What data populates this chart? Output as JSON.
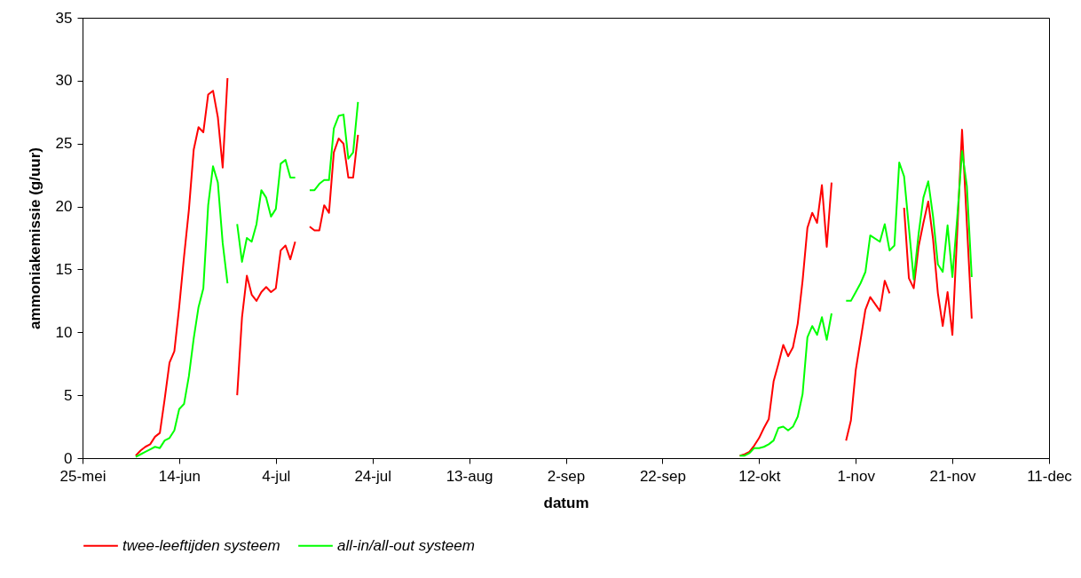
{
  "chart_data": {
    "type": "line",
    "xlabel": "datum",
    "ylabel": "ammoniakemissie (g/uur)",
    "legend": "bottom",
    "grid": false,
    "marker": "none",
    "line_style": "solid",
    "xlim": [
      "--05-25",
      "--12-11"
    ],
    "xticks": [
      {
        "value": "--05-25",
        "label": "25-mei"
      },
      {
        "value": "--06-14",
        "label": "14-jun"
      },
      {
        "value": "--07-04",
        "label": "4-jul"
      },
      {
        "value": "--07-24",
        "label": "24-jul"
      },
      {
        "value": "--08-13",
        "label": "13-aug"
      },
      {
        "value": "--09-02",
        "label": "2-sep"
      },
      {
        "value": "--09-22",
        "label": "22-sep"
      },
      {
        "value": "--10-12",
        "label": "12-okt"
      },
      {
        "value": "--11-01",
        "label": "1-nov"
      },
      {
        "value": "--11-21",
        "label": "21-nov"
      },
      {
        "value": "--12-11",
        "label": "11-dec"
      }
    ],
    "ylim": [
      0,
      35
    ],
    "yticks": [
      0,
      5,
      10,
      15,
      20,
      25,
      30,
      35
    ],
    "series": [
      {
        "name": "twee-leeftijden systeem",
        "color": "#ff0000",
        "x": [
          "--06-05",
          "--06-06",
          "--06-07",
          "--06-08",
          "--06-09",
          "--06-10",
          "--06-11",
          "--06-12",
          "--06-13",
          "--06-14",
          "--06-15",
          "--06-16",
          "--06-17",
          "--06-18",
          "--06-19",
          "--06-20",
          "--06-21",
          "--06-22",
          "--06-23",
          "--06-24",
          "--06-25",
          "--06-26",
          "--06-27",
          "--06-28",
          "--06-29",
          "--06-30",
          "--07-01",
          "--07-02",
          "--07-03",
          "--07-04",
          "--07-05",
          "--07-06",
          "--07-07",
          "--07-08",
          "--07-09",
          "--07-11",
          "--07-12",
          "--07-13",
          "--07-14",
          "--07-15",
          "--07-16",
          "--07-17",
          "--07-18",
          "--07-19",
          "--07-20",
          "--07-21",
          "--08-01",
          "--10-08",
          "--10-09",
          "--10-10",
          "--10-11",
          "--10-12",
          "--10-13",
          "--10-14",
          "--10-15",
          "--10-16",
          "--10-17",
          "--10-18",
          "--10-19",
          "--10-20",
          "--10-21",
          "--10-22",
          "--10-23",
          "--10-24",
          "--10-25",
          "--10-26",
          "--10-27",
          "--10-28",
          "--10-30",
          "--10-31",
          "--11-01",
          "--11-03",
          "--11-04",
          "--11-06",
          "--11-07",
          "--11-08",
          "--11-09",
          "--11-11",
          "--11-12",
          "--11-13",
          "--11-14",
          "--11-15",
          "--11-16",
          "--11-17",
          "--11-18",
          "--11-19",
          "--11-20",
          "--11-21",
          "--11-23",
          "--11-25"
        ],
        "values": [
          0.2,
          0.6,
          0.9,
          1.1,
          1.7,
          2.0,
          4.7,
          7.6,
          8.5,
          12.0,
          16.0,
          19.7,
          24.5,
          26.3,
          25.9,
          28.9,
          29.2,
          27.1,
          23.1,
          30.2,
          null,
          5.0,
          11.2,
          14.5,
          13.0,
          12.5,
          13.2,
          13.6,
          13.2,
          13.5,
          16.5,
          16.9,
          15.8,
          17.2,
          null,
          18.4,
          18.1,
          18.1,
          20.1,
          19.5,
          24.3,
          25.4,
          25.0,
          22.3,
          22.3,
          25.7,
          null,
          0.2,
          0.3,
          0.5,
          1.0,
          1.6,
          2.4,
          3.1,
          6.1,
          7.5,
          9.0,
          8.1,
          8.8,
          10.7,
          14.1,
          18.3,
          19.5,
          18.7,
          21.7,
          16.8,
          21.9,
          null,
          1.4,
          3.0,
          7.0,
          11.8,
          12.8,
          11.7,
          14.1,
          13.1,
          null,
          19.9,
          14.3,
          13.5,
          16.8,
          18.7,
          20.4,
          17.4,
          13.1,
          10.5,
          13.2,
          9.8,
          26.1,
          11.1
        ]
      },
      {
        "name": "all-in/all-out systeem",
        "color": "#00ff00",
        "x": [
          "--06-05",
          "--06-06",
          "--06-07",
          "--06-08",
          "--06-09",
          "--06-10",
          "--06-11",
          "--06-12",
          "--06-13",
          "--06-14",
          "--06-15",
          "--06-16",
          "--06-17",
          "--06-18",
          "--06-19",
          "--06-20",
          "--06-21",
          "--06-22",
          "--06-23",
          "--06-24",
          "--06-25",
          "--06-26",
          "--06-27",
          "--06-28",
          "--06-29",
          "--06-30",
          "--07-01",
          "--07-02",
          "--07-03",
          "--07-04",
          "--07-05",
          "--07-06",
          "--07-07",
          "--07-08",
          "--07-09",
          "--07-11",
          "--07-12",
          "--07-13",
          "--07-14",
          "--07-15",
          "--07-16",
          "--07-17",
          "--07-18",
          "--07-19",
          "--07-20",
          "--07-21",
          "--08-01",
          "--10-08",
          "--10-09",
          "--10-10",
          "--10-11",
          "--10-12",
          "--10-13",
          "--10-14",
          "--10-15",
          "--10-16",
          "--10-17",
          "--10-18",
          "--10-19",
          "--10-20",
          "--10-21",
          "--10-22",
          "--10-23",
          "--10-24",
          "--10-25",
          "--10-26",
          "--10-27",
          "--10-28",
          "--10-30",
          "--10-31",
          "--11-01",
          "--11-02",
          "--11-03",
          "--11-04",
          "--11-06",
          "--11-07",
          "--11-08",
          "--11-09",
          "--11-10",
          "--11-11",
          "--11-13",
          "--11-14",
          "--11-15",
          "--11-16",
          "--11-17",
          "--11-18",
          "--11-19",
          "--11-20",
          "--11-21",
          "--11-22",
          "--11-23",
          "--11-24",
          "--11-25"
        ],
        "values": [
          0.1,
          0.3,
          0.5,
          0.7,
          0.9,
          0.8,
          1.4,
          1.6,
          2.2,
          3.9,
          4.3,
          6.5,
          9.5,
          12.0,
          13.5,
          20.1,
          23.2,
          21.9,
          17.1,
          13.9,
          null,
          18.6,
          15.6,
          17.5,
          17.2,
          18.6,
          21.3,
          20.7,
          19.2,
          19.8,
          23.4,
          23.7,
          22.3,
          22.3,
          null,
          21.3,
          21.3,
          21.8,
          22.1,
          22.1,
          26.2,
          27.2,
          27.3,
          23.8,
          24.3,
          28.3,
          null,
          0.2,
          0.2,
          0.4,
          0.8,
          0.8,
          0.9,
          1.1,
          1.4,
          2.4,
          2.5,
          2.2,
          2.5,
          3.3,
          5.1,
          9.6,
          10.5,
          9.8,
          11.2,
          9.4,
          11.5,
          null,
          12.5,
          12.5,
          13.2,
          13.9,
          14.8,
          17.7,
          17.2,
          18.6,
          16.5,
          16.9,
          23.5,
          22.4,
          14.2,
          17.8,
          20.7,
          22.0,
          19.2,
          15.4,
          14.8,
          18.5,
          14.4,
          19.1,
          24.4,
          21.6,
          14.4
        ]
      }
    ]
  }
}
